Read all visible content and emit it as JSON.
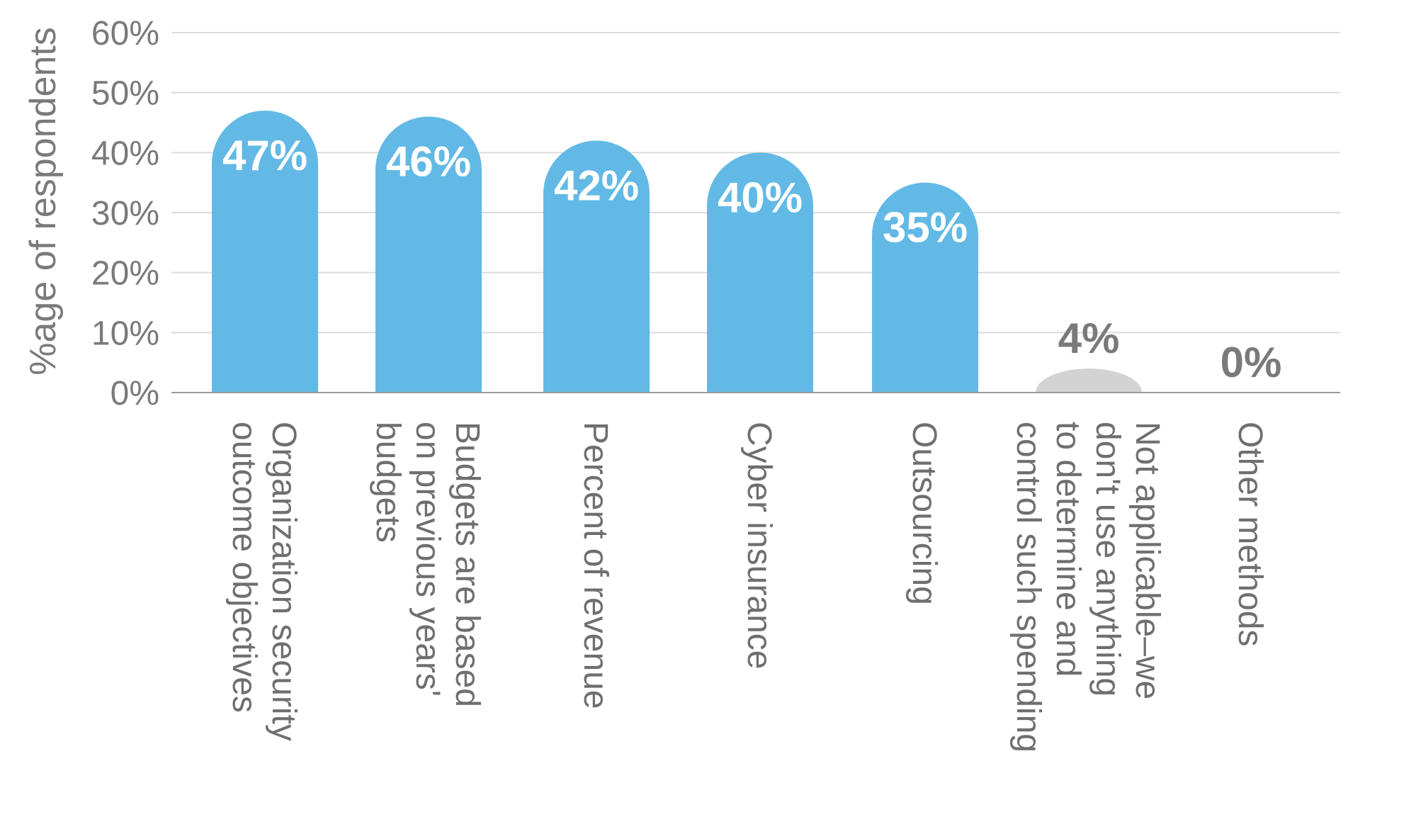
{
  "chart_data": {
    "type": "bar",
    "ylabel": "%age of respondents",
    "ylim": [
      0,
      60
    ],
    "yticks": [
      "0%",
      "10%",
      "20%",
      "30%",
      "40%",
      "50%",
      "60%"
    ],
    "grid": true,
    "categories": [
      [
        "Organization security",
        "outcome objectives"
      ],
      [
        "Budgets are based",
        "on previous years'",
        "budgets"
      ],
      [
        "Percent of revenue"
      ],
      [
        "Cyber insurance"
      ],
      [
        "Outsourcing"
      ],
      [
        "Not applicable–we",
        "don't use anything",
        "to determine and",
        "control such spending"
      ],
      [
        "Other methods"
      ]
    ],
    "values": [
      47,
      46,
      42,
      40,
      35,
      4,
      0
    ],
    "value_labels": [
      "47%",
      "46%",
      "42%",
      "40%",
      "35%",
      "4%",
      "0%"
    ],
    "colors": {
      "primary_bar": "#62b9e5",
      "muted_bar": "#d3d3d3",
      "gridline": "#dcdcdc",
      "axis": "#9a9a9a",
      "text": "#7a7a7a"
    }
  }
}
